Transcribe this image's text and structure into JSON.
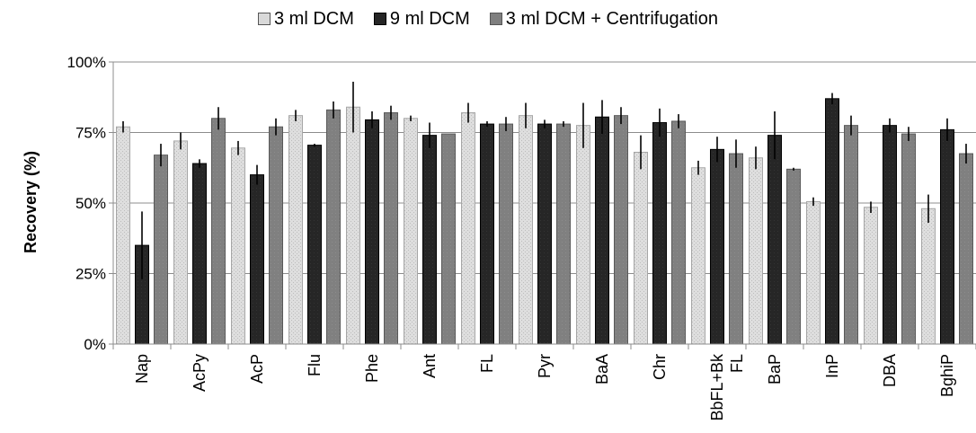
{
  "chart_data": {
    "type": "bar",
    "title": "",
    "xlabel": "",
    "ylabel": "Recovery (%)",
    "ylim": [
      0,
      100
    ],
    "yticks": [
      "0%",
      "25%",
      "50%",
      "75%",
      "100%"
    ],
    "grid": true,
    "legend_position": "top-center",
    "categories": [
      "Nap",
      "AcPy",
      "AcP",
      "Flu",
      "Phe",
      "Ant",
      "FL",
      "Pyr",
      "BaA",
      "Chr",
      "BbFL+BkFL",
      "BaP",
      "InP",
      "DBA",
      "BghiP"
    ],
    "category_labels": [
      [
        "Nap"
      ],
      [
        "AcPy"
      ],
      [
        "AcP"
      ],
      [
        "Flu"
      ],
      [
        "Phe"
      ],
      [
        "Ant"
      ],
      [
        "FL"
      ],
      [
        "Pyr"
      ],
      [
        "BaA"
      ],
      [
        "Chr"
      ],
      [
        "BbFL+Bk",
        "FL"
      ],
      [
        "BaP"
      ],
      [
        "InP"
      ],
      [
        "DBA"
      ],
      [
        "BghiP"
      ]
    ],
    "series": [
      {
        "name": "3 ml DCM",
        "color": "#d9d9d9",
        "values": [
          77,
          72,
          69.5,
          81,
          84,
          80,
          82,
          81,
          77.5,
          68,
          62.5,
          66,
          50.5,
          48.5,
          48
        ],
        "errors": [
          2,
          3,
          2.5,
          2,
          9,
          1,
          3.5,
          4.5,
          8,
          6,
          2.5,
          4,
          1.5,
          2,
          5
        ]
      },
      {
        "name": "9 ml DCM",
        "color": "#262626",
        "values": [
          35,
          64,
          60,
          70.5,
          79.5,
          74,
          78,
          78,
          80.5,
          78.5,
          69,
          74,
          87,
          77.5,
          76
        ],
        "errors": [
          12,
          1.5,
          3.5,
          0.5,
          3,
          4.5,
          1,
          1.5,
          6,
          5,
          4.5,
          8.5,
          2,
          2.5,
          4
        ]
      },
      {
        "name": "3 ml DCM + Centrifugation",
        "color": "#7f7f7f",
        "values": [
          67,
          80,
          77,
          83,
          82,
          74.5,
          78,
          78,
          81,
          79,
          67.5,
          62,
          77.5,
          74.5,
          67.5
        ],
        "errors": [
          4,
          4,
          3,
          3,
          2.5,
          0,
          2.5,
          1,
          3,
          2.5,
          5,
          0.5,
          3.5,
          2.5,
          3.5
        ]
      }
    ]
  }
}
